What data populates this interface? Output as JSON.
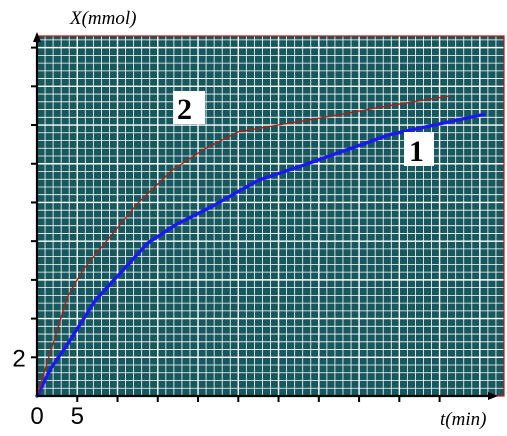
{
  "chart_data": {
    "type": "line",
    "xlabel": "t(min)",
    "ylabel": "X(mmol)",
    "xlim": [
      0,
      58
    ],
    "ylim": [
      0,
      18.6
    ],
    "x_tick_labels": [
      {
        "value": 0,
        "label": "0"
      },
      {
        "value": 5,
        "label": "5"
      }
    ],
    "y_tick_labels": [
      {
        "value": 2,
        "label": "2"
      }
    ],
    "grid": true,
    "colors": {
      "background": "#17585e",
      "grid_line": "#ffffff",
      "plot_border": "#d01010",
      "axis": "#000000"
    },
    "series": [
      {
        "name": "1",
        "color": "#1a1aee",
        "x": [
          0,
          1.75,
          3.75,
          7.25,
          13.75,
          17.25,
          21.75,
          27.5,
          33.25,
          43.75,
          55.5
        ],
        "y": [
          0,
          1.45,
          2.65,
          4.95,
          7.9,
          8.85,
          9.8,
          11.15,
          11.95,
          13.5,
          14.55
        ]
      },
      {
        "name": "2",
        "color": "#b01e10",
        "x": [
          0,
          1.25,
          3.75,
          5.75,
          12.5,
          16.75,
          20.75,
          25.0,
          29.25,
          35.0,
          43.75,
          51.25
        ],
        "y": [
          0,
          1.7,
          5.1,
          6.55,
          9.95,
          11.65,
          12.75,
          13.65,
          13.95,
          14.35,
          15.0,
          15.5
        ]
      }
    ]
  }
}
